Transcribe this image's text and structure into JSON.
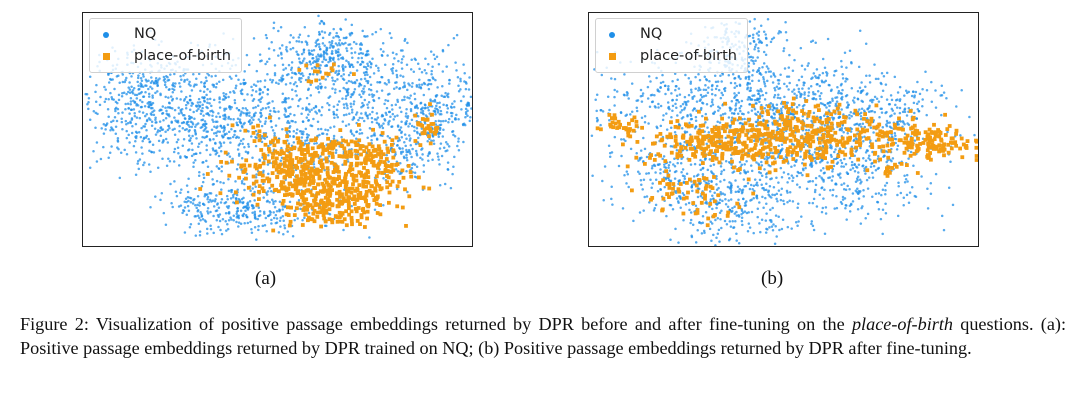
{
  "colors": {
    "nq": "#1f8fe8",
    "place_of_birth": "#f39c12"
  },
  "panels": [
    {
      "id": "a",
      "sublabel": "(a)",
      "legend": [
        {
          "marker": "dot",
          "label": "NQ"
        },
        {
          "marker": "cross",
          "label": "place-of-birth"
        }
      ]
    },
    {
      "id": "b",
      "sublabel": "(b)",
      "legend": [
        {
          "marker": "dot",
          "label": "NQ"
        },
        {
          "marker": "cross",
          "label": "place-of-birth"
        }
      ]
    }
  ],
  "caption": {
    "prefix": "Figure 2: Visualization of positive passage embeddings returned by DPR before and after fine-tuning on the ",
    "italic": "place-of-birth",
    "suffix": " questions. (a): Positive passage embeddings returned by DPR trained on NQ; (b) Positive passage embeddings returned by DPR after fine-tuning."
  },
  "chart_data": [
    {
      "type": "scatter",
      "title": "",
      "xlabel": "",
      "ylabel": "",
      "grid": false,
      "legend_position": "top-left",
      "series": [
        {
          "name": "NQ",
          "marker": "dot",
          "color": "#1f8fe8"
        },
        {
          "name": "place-of-birth",
          "marker": "x",
          "color": "#f39c12"
        }
      ]
    },
    {
      "type": "scatter",
      "title": "",
      "xlabel": "",
      "ylabel": "",
      "grid": false,
      "legend_position": "top-left",
      "series": [
        {
          "name": "NQ",
          "marker": "dot",
          "color": "#1f8fe8"
        },
        {
          "name": "place-of-birth",
          "marker": "x",
          "color": "#f39c12"
        }
      ]
    }
  ]
}
